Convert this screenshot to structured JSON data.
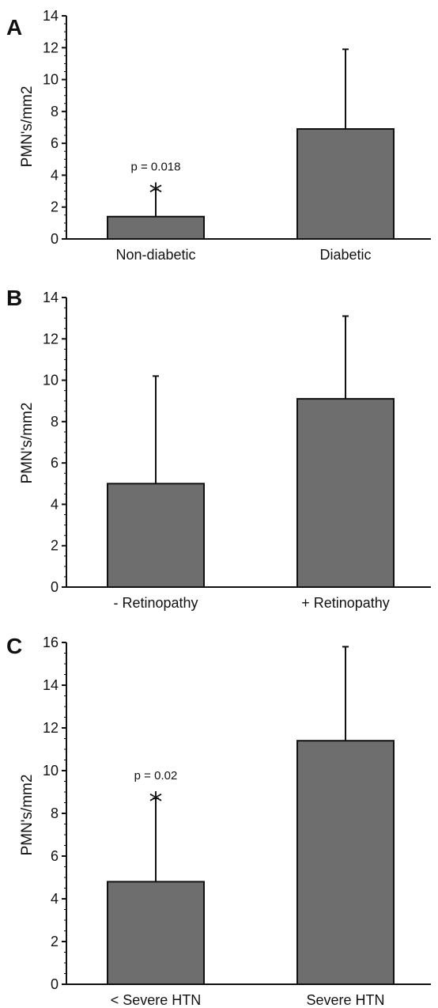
{
  "chart_data": [
    {
      "type": "bar",
      "panel_label": "A",
      "categories": [
        "Non-diabetic",
        "Diabetic"
      ],
      "values": [
        1.4,
        6.9
      ],
      "error_upper": [
        3.1,
        11.9
      ],
      "ylabel": "PMN's/mm2",
      "xlabel": "",
      "title": "",
      "ylim": [
        0,
        14
      ],
      "yticks": [
        0,
        2,
        4,
        6,
        8,
        10,
        12,
        14
      ],
      "grid": false,
      "bar_color": "#6e6e6e",
      "annotation": {
        "category": "Non-diabetic",
        "p_text": "p = 0.018",
        "marker": "*"
      }
    },
    {
      "type": "bar",
      "panel_label": "B",
      "categories": [
        "- Retinopathy",
        "+ Retinopathy"
      ],
      "values": [
        5.0,
        9.1
      ],
      "error_upper": [
        10.2,
        13.1
      ],
      "ylabel": "PMN's/mm2",
      "xlabel": "",
      "title": "",
      "ylim": [
        0,
        14
      ],
      "yticks": [
        0,
        2,
        4,
        6,
        8,
        10,
        12,
        14
      ],
      "grid": false,
      "bar_color": "#6e6e6e"
    },
    {
      "type": "bar",
      "panel_label": "C",
      "categories": [
        "< Severe HTN",
        "Severe HTN"
      ],
      "values": [
        4.8,
        11.4
      ],
      "error_upper": [
        8.7,
        15.8
      ],
      "ylabel": "PMN's/mm2",
      "xlabel": "",
      "title": "",
      "ylim": [
        0,
        16
      ],
      "yticks": [
        0,
        2,
        4,
        6,
        8,
        10,
        12,
        14,
        16
      ],
      "grid": false,
      "bar_color": "#6e6e6e",
      "annotation": {
        "category": "< Severe HTN",
        "p_text": "p = 0.02",
        "marker": "*"
      }
    }
  ]
}
